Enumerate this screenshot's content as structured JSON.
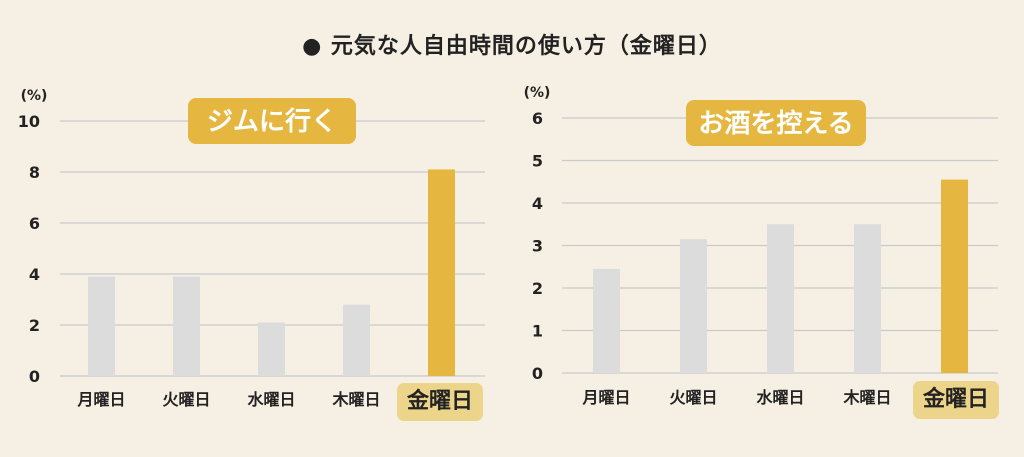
{
  "title": "● 元気な人自由時間の使い方（金曜日）",
  "colors": {
    "background": "#f6f0e4",
    "bar": "#dcdcdc",
    "highlight": "#e6b740",
    "highlight_label_bg": "#ecd48b",
    "grid": "#c9c9c9"
  },
  "chart_data": [
    {
      "type": "bar",
      "title": "ジムに行く",
      "unit_label": "(%)",
      "categories": [
        "月曜日",
        "火曜日",
        "水曜日",
        "木曜日",
        "金曜日"
      ],
      "values": [
        3.9,
        3.9,
        2.1,
        2.8,
        8.1
      ],
      "highlight_category": "金曜日",
      "ylim": [
        0,
        10
      ],
      "yticks": [
        0,
        2,
        4,
        6,
        8,
        10
      ],
      "grid": true
    },
    {
      "type": "bar",
      "title": "お酒を控える",
      "unit_label": "(%)",
      "categories": [
        "月曜日",
        "火曜日",
        "水曜日",
        "木曜日",
        "金曜日"
      ],
      "values": [
        2.45,
        3.15,
        3.5,
        3.5,
        4.55
      ],
      "highlight_category": "金曜日",
      "ylim": [
        0,
        6
      ],
      "yticks": [
        0,
        1,
        2,
        3,
        4,
        5,
        6
      ],
      "grid": true
    }
  ]
}
